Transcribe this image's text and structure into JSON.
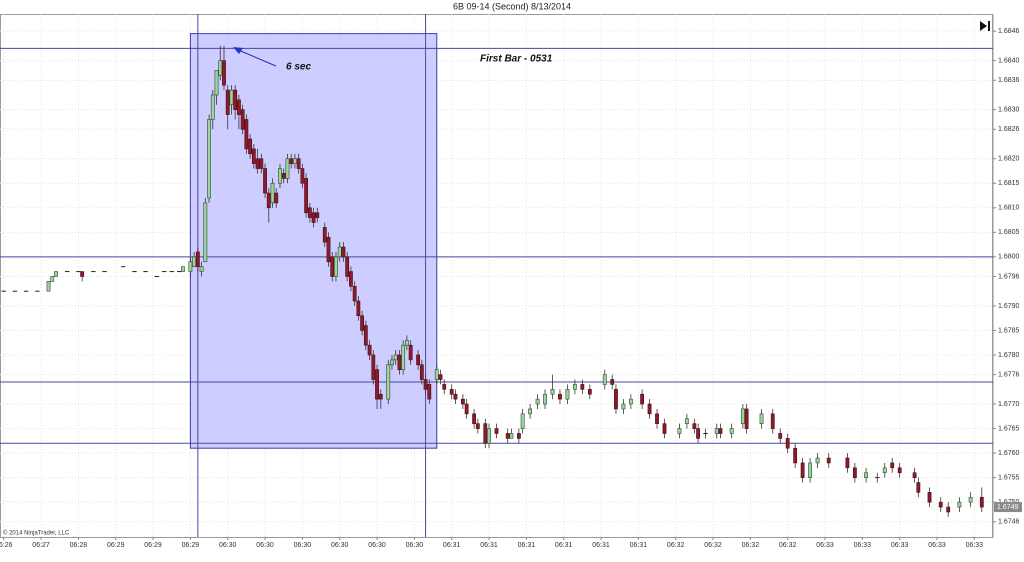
{
  "chart_data": {
    "type": "candlestick",
    "title": "6B 09-14 (Second)  8/13/2014",
    "copyright": "© 2014 NinjaTrader, LLC",
    "annotations": [
      "6 sec",
      "First Bar - 0531"
    ],
    "up_color": "#9ed49e",
    "down_color": "#8b1c2c",
    "grid": true,
    "xlim": [
      -1,
      265
    ],
    "ylim": [
      1.67429,
      1.68495
    ],
    "xticks": [
      {
        "value": 0,
        "label": "06:26"
      },
      {
        "value": 10,
        "label": "06:27"
      },
      {
        "value": 20,
        "label": "06:28"
      },
      {
        "value": 30,
        "label": "06:29"
      },
      {
        "value": 40,
        "label": "06:29"
      },
      {
        "value": 50,
        "label": "06:29"
      },
      {
        "value": 60,
        "label": "06:30"
      },
      {
        "value": 70,
        "label": "06:30"
      },
      {
        "value": 80,
        "label": "06:30"
      },
      {
        "value": 90,
        "label": "06:30"
      },
      {
        "value": 100,
        "label": "06:30"
      },
      {
        "value": 110,
        "label": "06:30"
      },
      {
        "value": 120,
        "label": "06:31"
      },
      {
        "value": 130,
        "label": "06:31"
      },
      {
        "value": 140,
        "label": "06:31"
      },
      {
        "value": 150,
        "label": "06:31"
      },
      {
        "value": 160,
        "label": "06:31"
      },
      {
        "value": 170,
        "label": "06:31"
      },
      {
        "value": 180,
        "label": "06:32"
      },
      {
        "value": 190,
        "label": "06:32"
      },
      {
        "value": 200,
        "label": "06:32"
      },
      {
        "value": 210,
        "label": "06:32"
      },
      {
        "value": 220,
        "label": "06:33"
      },
      {
        "value": 230,
        "label": "06:33"
      },
      {
        "value": 240,
        "label": "06:33"
      },
      {
        "value": 250,
        "label": "06:33"
      },
      {
        "value": 260,
        "label": "06:33"
      }
    ],
    "yticks": [
      1.6846,
      {
        "value": 1.684,
        "label": "1.6840"
      },
      1.6836,
      {
        "value": 1.683,
        "label": "1.6830"
      },
      1.6826,
      {
        "value": 1.682,
        "label": "1.6820"
      },
      1.6815,
      {
        "value": 1.681,
        "label": "1.6810"
      },
      1.6805,
      {
        "value": 1.68,
        "label": "1.6800"
      },
      1.6796,
      {
        "value": 1.679,
        "label": "1.6790"
      },
      1.6785,
      {
        "value": 1.678,
        "label": "1.6780"
      },
      1.6776,
      {
        "value": 1.677,
        "label": "1.6770"
      },
      1.6765,
      {
        "value": 1.676,
        "label": "1.6760"
      },
      1.6755,
      {
        "value": 1.675,
        "label": "1.6750"
      },
      1.6746
    ],
    "last_price": 1.6749,
    "horizontal_lines": [
      1.68425,
      1.68,
      1.67745,
      1.6762
    ],
    "vertical_lines": [
      52,
      113
    ],
    "rectangle": {
      "x": [
        50,
        116
      ],
      "y": [
        1.68455,
        1.6761
      ]
    },
    "candles": {
      "x": [
        0,
        3,
        6,
        9,
        12,
        13,
        14,
        17,
        20,
        21,
        24,
        27,
        32,
        35,
        38,
        41,
        43,
        45,
        47,
        48,
        50,
        51,
        52,
        53,
        54,
        55,
        56,
        57,
        58,
        59,
        60,
        61,
        62,
        63,
        64,
        65,
        66,
        67,
        68,
        69,
        70,
        71,
        72,
        73,
        74,
        75,
        76,
        77,
        78,
        79,
        80,
        81,
        82,
        83,
        84,
        86,
        87,
        88,
        89,
        90,
        91,
        92,
        93,
        94,
        95,
        96,
        97,
        98,
        99,
        100,
        101,
        103,
        104,
        105,
        106,
        107,
        108,
        109,
        111,
        112,
        113,
        114,
        116,
        117,
        118,
        120,
        121,
        123,
        124,
        126,
        127,
        129,
        130,
        132,
        135,
        136,
        138,
        139,
        141,
        143,
        145,
        147,
        149,
        151,
        153,
        155,
        157,
        161,
        163,
        164,
        166,
        168,
        171,
        173,
        175,
        177,
        181,
        183,
        185,
        186,
        188,
        191,
        192,
        195,
        198,
        199,
        203,
        206,
        208,
        210,
        212,
        214,
        216,
        218,
        221,
        226,
        228,
        231,
        234,
        236,
        238,
        240,
        244,
        245,
        248,
        251,
        253,
        256,
        259,
        262
      ],
      "open": [
        1.6793,
        1.6793,
        1.6793,
        1.6793,
        1.6793,
        1.6795,
        1.6796,
        1.6797,
        1.6797,
        1.6797,
        1.6797,
        1.6797,
        1.6798,
        1.6797,
        1.6797,
        1.6796,
        1.6797,
        1.6797,
        1.6797,
        1.6797,
        1.6797,
        1.6798,
        1.6801,
        1.6797,
        1.6799,
        1.6812,
        1.6828,
        1.6833,
        1.6837,
        1.684,
        1.6834,
        1.6831,
        1.6834,
        1.6832,
        1.683,
        1.6828,
        1.6824,
        1.6822,
        1.682,
        1.682,
        1.6818,
        1.6813,
        1.6811,
        1.6813,
        1.6815,
        1.6817,
        1.6816,
        1.682,
        1.6819,
        1.682,
        1.6818,
        1.6816,
        1.681,
        1.6809,
        1.6809,
        1.6806,
        1.6804,
        1.68,
        1.6796,
        1.68,
        1.6802,
        1.68,
        1.6797,
        1.6794,
        1.6791,
        1.6788,
        1.6786,
        1.6782,
        1.678,
        1.6777,
        1.6772,
        1.6771,
        1.6778,
        1.6779,
        1.678,
        1.6777,
        1.6782,
        1.6782,
        1.678,
        1.6778,
        1.6775,
        1.6774,
        1.6775,
        1.6776,
        1.6774,
        1.6773,
        1.6772,
        1.6771,
        1.677,
        1.6768,
        1.6766,
        1.6766,
        1.6762,
        1.6765,
        1.6764,
        1.6763,
        1.6764,
        1.6765,
        1.6768,
        1.677,
        1.677,
        1.6772,
        1.6772,
        1.6771,
        1.6773,
        1.6774,
        1.6773,
        1.6774,
        1.6775,
        1.6773,
        1.6769,
        1.677,
        1.6772,
        1.677,
        1.6768,
        1.6766,
        1.6764,
        1.6766,
        1.6766,
        1.6765,
        1.6764,
        1.6764,
        1.6765,
        1.6764,
        1.6766,
        1.6769,
        1.6766,
        1.6768,
        1.6764,
        1.6763,
        1.6761,
        1.6758,
        1.6755,
        1.6758,
        1.6759,
        1.6759,
        1.6757,
        1.6755,
        1.6755,
        1.6756,
        1.6758,
        1.6757,
        1.6756,
        1.6754,
        1.6752,
        1.675,
        1.6749,
        1.6749,
        1.675,
        1.6751
      ],
      "high": [
        1.6793,
        1.6793,
        1.6793,
        1.6793,
        1.6795,
        1.6796,
        1.6797,
        1.6797,
        1.6797,
        1.6797,
        1.6797,
        1.6797,
        1.6798,
        1.6797,
        1.6797,
        1.6796,
        1.6797,
        1.6797,
        1.6797,
        1.6798,
        1.68,
        1.6801,
        1.6802,
        1.6799,
        1.6812,
        1.6829,
        1.6834,
        1.6838,
        1.6843,
        1.6843,
        1.6835,
        1.6835,
        1.6835,
        1.6833,
        1.6831,
        1.6829,
        1.6825,
        1.6823,
        1.6822,
        1.6821,
        1.6819,
        1.6814,
        1.6816,
        1.6814,
        1.6819,
        1.6818,
        1.6821,
        1.6821,
        1.6821,
        1.6821,
        1.6819,
        1.6817,
        1.6811,
        1.681,
        1.681,
        1.6807,
        1.6805,
        1.6801,
        1.6801,
        1.6803,
        1.6803,
        1.6801,
        1.6798,
        1.6795,
        1.6792,
        1.6789,
        1.6787,
        1.6783,
        1.6781,
        1.6778,
        1.6773,
        1.6779,
        1.678,
        1.6781,
        1.6781,
        1.6783,
        1.6784,
        1.6783,
        1.6781,
        1.6779,
        1.6776,
        1.6775,
        1.6778,
        1.6777,
        1.6775,
        1.6774,
        1.6773,
        1.6772,
        1.6771,
        1.6769,
        1.6767,
        1.6767,
        1.6766,
        1.6766,
        1.6765,
        1.6765,
        1.6765,
        1.6769,
        1.677,
        1.6772,
        1.6773,
        1.6776,
        1.6773,
        1.6774,
        1.6775,
        1.6775,
        1.6774,
        1.6777,
        1.6776,
        1.6774,
        1.6771,
        1.6772,
        1.6773,
        1.6771,
        1.6769,
        1.6767,
        1.6766,
        1.6768,
        1.6767,
        1.6766,
        1.6765,
        1.6766,
        1.6766,
        1.6766,
        1.677,
        1.677,
        1.6769,
        1.6769,
        1.6765,
        1.6764,
        1.6762,
        1.6759,
        1.6759,
        1.676,
        1.676,
        1.676,
        1.6758,
        1.6757,
        1.6756,
        1.6758,
        1.6759,
        1.6758,
        1.6757,
        1.6755,
        1.6753,
        1.6751,
        1.675,
        1.6751,
        1.6752,
        1.6753
      ],
      "low": [
        1.6793,
        1.6793,
        1.6793,
        1.6793,
        1.6793,
        1.6795,
        1.6796,
        1.6797,
        1.6797,
        1.6795,
        1.6797,
        1.6797,
        1.6798,
        1.6797,
        1.6797,
        1.6796,
        1.6797,
        1.6797,
        1.6797,
        1.6797,
        1.6796,
        1.6798,
        1.6797,
        1.6796,
        1.6799,
        1.6811,
        1.6826,
        1.6831,
        1.6836,
        1.6834,
        1.6826,
        1.6829,
        1.6828,
        1.6826,
        1.6825,
        1.6821,
        1.682,
        1.6818,
        1.6817,
        1.6817,
        1.6812,
        1.6807,
        1.681,
        1.681,
        1.6814,
        1.6815,
        1.6815,
        1.6818,
        1.6818,
        1.6817,
        1.6814,
        1.6808,
        1.6807,
        1.6806,
        1.6807,
        1.6802,
        1.6798,
        1.6795,
        1.6795,
        1.6799,
        1.6799,
        1.6795,
        1.6793,
        1.679,
        1.6787,
        1.6784,
        1.6781,
        1.6779,
        1.6774,
        1.6769,
        1.6769,
        1.677,
        1.6777,
        1.6778,
        1.6776,
        1.6776,
        1.6781,
        1.6778,
        1.6777,
        1.6774,
        1.6772,
        1.677,
        1.6774,
        1.6774,
        1.6772,
        1.6771,
        1.677,
        1.6769,
        1.6767,
        1.6765,
        1.6764,
        1.6761,
        1.6761,
        1.6763,
        1.6762,
        1.6763,
        1.6762,
        1.6764,
        1.6767,
        1.6769,
        1.6769,
        1.6771,
        1.677,
        1.677,
        1.6772,
        1.6772,
        1.6771,
        1.6773,
        1.6773,
        1.6768,
        1.6768,
        1.6769,
        1.6769,
        1.6767,
        1.6765,
        1.6763,
        1.6763,
        1.6765,
        1.6764,
        1.6762,
        1.6763,
        1.6763,
        1.6763,
        1.6763,
        1.6765,
        1.6764,
        1.6765,
        1.6764,
        1.6762,
        1.676,
        1.6757,
        1.6754,
        1.6754,
        1.6757,
        1.6757,
        1.6756,
        1.6754,
        1.6754,
        1.6754,
        1.6755,
        1.6756,
        1.6755,
        1.6754,
        1.6751,
        1.6749,
        1.6748,
        1.6747,
        1.6748,
        1.6749,
        1.6748
      ],
      "close": [
        1.6793,
        1.6793,
        1.6793,
        1.6793,
        1.6795,
        1.6796,
        1.6797,
        1.6797,
        1.6797,
        1.6796,
        1.6797,
        1.6797,
        1.6798,
        1.6797,
        1.6797,
        1.6796,
        1.6797,
        1.6797,
        1.6797,
        1.6798,
        1.6799,
        1.68,
        1.6798,
        1.6798,
        1.6811,
        1.6828,
        1.6833,
        1.6838,
        1.684,
        1.6835,
        1.6829,
        1.6834,
        1.683,
        1.6829,
        1.6826,
        1.6822,
        1.6821,
        1.6819,
        1.6818,
        1.6818,
        1.6813,
        1.681,
        1.6815,
        1.6811,
        1.6818,
        1.6816,
        1.682,
        1.6819,
        1.682,
        1.6818,
        1.6815,
        1.6809,
        1.6808,
        1.6807,
        1.6808,
        1.6803,
        1.6799,
        1.6796,
        1.68,
        1.6802,
        1.68,
        1.6796,
        1.6794,
        1.6791,
        1.6788,
        1.6785,
        1.6782,
        1.678,
        1.6775,
        1.6771,
        1.6771,
        1.6778,
        1.6779,
        1.678,
        1.6777,
        1.6782,
        1.6783,
        1.6779,
        1.6778,
        1.6775,
        1.6773,
        1.6771,
        1.6777,
        1.6775,
        1.6773,
        1.6772,
        1.6771,
        1.677,
        1.6768,
        1.6766,
        1.6765,
        1.6762,
        1.6765,
        1.6764,
        1.6763,
        1.6764,
        1.6763,
        1.6768,
        1.6769,
        1.6771,
        1.6772,
        1.6773,
        1.6771,
        1.6773,
        1.6774,
        1.6773,
        1.6772,
        1.6776,
        1.6774,
        1.6769,
        1.677,
        1.6771,
        1.677,
        1.6768,
        1.6766,
        1.6764,
        1.6765,
        1.6767,
        1.6765,
        1.6763,
        1.6764,
        1.6765,
        1.6764,
        1.6765,
        1.6769,
        1.6765,
        1.6768,
        1.6765,
        1.6763,
        1.6761,
        1.6758,
        1.6755,
        1.6758,
        1.6759,
        1.6758,
        1.6757,
        1.6755,
        1.6756,
        1.6755,
        1.6757,
        1.6757,
        1.6756,
        1.6755,
        1.6752,
        1.675,
        1.6749,
        1.6748,
        1.675,
        1.6751,
        1.6749
      ]
    }
  }
}
